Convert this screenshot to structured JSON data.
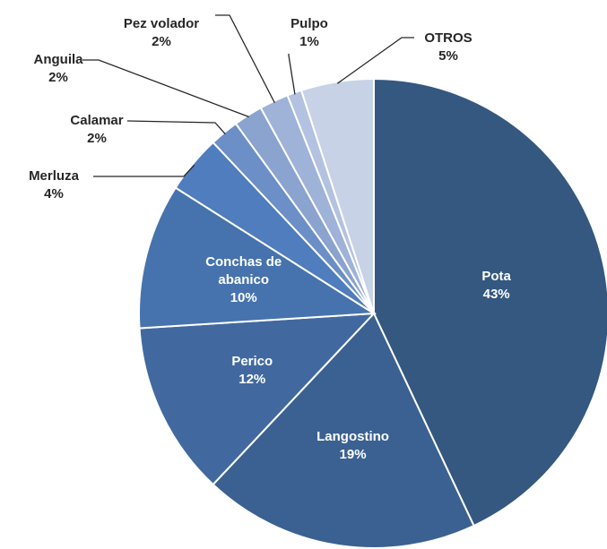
{
  "chart_data": {
    "type": "pie",
    "categories": [
      "Pota",
      "Langostino",
      "Perico",
      "Conchas de abanico",
      "Merluza",
      "Calamar",
      "Anguila",
      "Pez volador",
      "Pulpo",
      "OTROS"
    ],
    "values": [
      43,
      19,
      12,
      10,
      4,
      2,
      2,
      2,
      1,
      5
    ],
    "value_labels": [
      "43%",
      "19%",
      "12%",
      "10%",
      "4%",
      "2%",
      "2%",
      "2%",
      "1%",
      "5%"
    ],
    "colors": [
      "#34587f",
      "#3a6191",
      "#41699f",
      "#4673ad",
      "#4f7dbd",
      "#6b8fc6",
      "#8aa3cf",
      "#9fb2d8",
      "#b3c2e0",
      "#c8d2e6"
    ]
  }
}
